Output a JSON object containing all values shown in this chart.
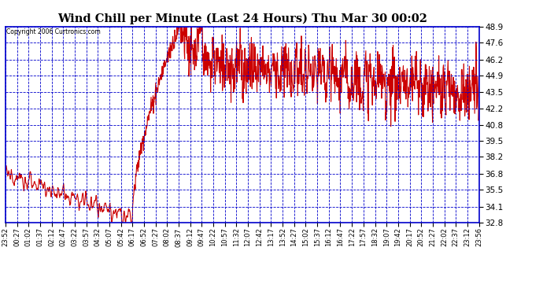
{
  "title": "Wind Chill per Minute (Last 24 Hours) Thu Mar 30 00:02",
  "copyright": "Copyright 2006 Curtronics.com",
  "background_color": "#ffffff",
  "plot_bg_color": "#ffffff",
  "grid_color": "#0000cc",
  "line_color": "#cc0000",
  "yticks": [
    32.8,
    34.1,
    35.5,
    36.8,
    38.2,
    39.5,
    40.8,
    42.2,
    43.5,
    44.9,
    46.2,
    47.6,
    48.9
  ],
  "ymin": 32.8,
  "ymax": 48.9,
  "xtick_labels": [
    "23:52",
    "00:27",
    "01:02",
    "01:37",
    "02:12",
    "02:47",
    "03:22",
    "03:57",
    "04:32",
    "05:07",
    "05:42",
    "06:17",
    "06:52",
    "07:27",
    "08:02",
    "08:37",
    "09:12",
    "09:47",
    "10:22",
    "10:57",
    "11:32",
    "12:07",
    "12:42",
    "13:17",
    "13:52",
    "14:27",
    "15:02",
    "15:37",
    "16:12",
    "16:47",
    "17:22",
    "17:57",
    "18:32",
    "19:07",
    "19:42",
    "20:17",
    "20:52",
    "21:27",
    "22:02",
    "22:37",
    "23:12",
    "23:56"
  ],
  "num_points": 1441,
  "seed": 7
}
